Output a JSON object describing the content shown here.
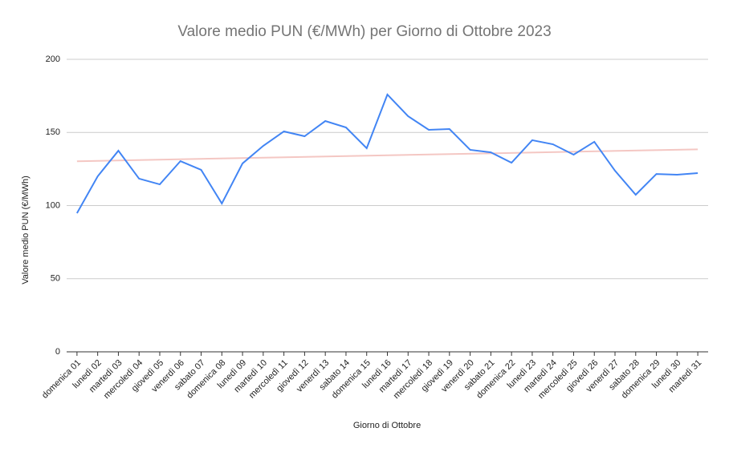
{
  "chart_data": {
    "type": "line",
    "title": "Valore medio PUN (€/MWh) per Giorno di Ottobre 2023",
    "x_label": "Giorno di Ottobre",
    "y_label": "Valore medio PUN (€/MWh)",
    "categories": [
      "domenica 01",
      "lunedì 02",
      "martedì 03",
      "mercoledì 04",
      "giovedì 05",
      "venerdì 06",
      "sabato 07",
      "domenica 08",
      "lunedì 09",
      "martedì 10",
      "mercoledì 11",
      "giovedì 12",
      "venerdì 13",
      "sabato 14",
      "domenica 15",
      "lunedì 16",
      "martedì 17",
      "mercoledì 18",
      "giovedì 19",
      "venerdì 20",
      "sabato 21",
      "domenica 22",
      "lunedì 23",
      "martedì 24",
      "mercoledì 25",
      "giovedì 26",
      "venerdì 27",
      "sabato 28",
      "domenica 29",
      "lunedì 30",
      "martedì 31"
    ],
    "values": [
      94.8,
      120,
      137.5,
      118.4,
      114.5,
      130.4,
      124.4,
      101.4,
      128.8,
      140.8,
      150.7,
      147.4,
      157.8,
      153.4,
      139.2,
      175.9,
      161.1,
      151.8,
      152.3,
      138.1,
      136.4,
      129.3,
      144.7,
      141.9,
      134.8,
      143.6,
      123.8,
      107.4,
      121.6,
      121.1,
      122.2
    ],
    "color": "#4285f4",
    "trendline": true,
    "trendline_color": "#f4c7c3",
    "ylim": [
      0,
      200
    ],
    "yticks": [
      0,
      50,
      100,
      150,
      200
    ],
    "grid": true
  }
}
